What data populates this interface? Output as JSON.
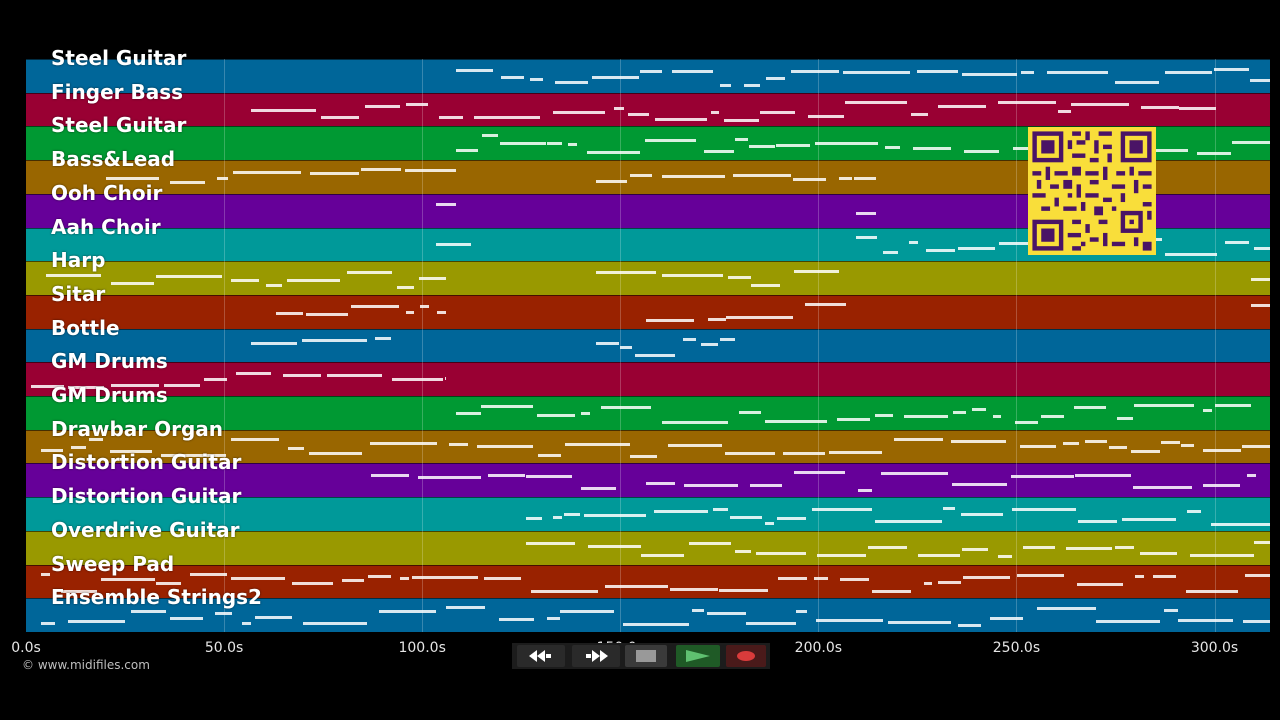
{
  "tracks": [
    {
      "label": "Steel Guitar",
      "color": "#006699"
    },
    {
      "label": "Finger Bass",
      "color": "#990033"
    },
    {
      "label": "Steel Guitar",
      "color": "#009933"
    },
    {
      "label": "Bass&Lead",
      "color": "#996600"
    },
    {
      "label": "Ooh Choir",
      "color": "#660099"
    },
    {
      "label": "Aah Choir",
      "color": "#009999"
    },
    {
      "label": "Harp",
      "color": "#999900"
    },
    {
      "label": "Sitar",
      "color": "#992200"
    },
    {
      "label": "Bottle",
      "color": "#006699"
    },
    {
      "label": "GM Drums",
      "color": "#990033"
    },
    {
      "label": "GM Drums",
      "color": "#009933"
    },
    {
      "label": "Drawbar Organ",
      "color": "#996600"
    },
    {
      "label": "Distortion Guitar",
      "color": "#660099"
    },
    {
      "label": "Distortion Guitar",
      "color": "#009999"
    },
    {
      "label": "Overdrive Guitar",
      "color": "#999900"
    },
    {
      "label": "Sweep Pad",
      "color": "#992200"
    },
    {
      "label": "Ensemble Strings2",
      "color": "#006699"
    }
  ],
  "timeline": {
    "ticks": [
      "0.0s",
      "50.0s",
      "100.0s",
      "150.0s",
      "200.0s",
      "250.0s",
      "300.0s"
    ]
  },
  "copyright": "© www.midifiles.com",
  "transport": {
    "rewind_icon": "rewind-icon",
    "fast_forward_icon": "fast-forward-icon",
    "stop_icon": "stop-icon",
    "play_icon": "play-icon",
    "record_icon": "record-icon"
  },
  "qr": {
    "icon": "qr-code-icon"
  }
}
